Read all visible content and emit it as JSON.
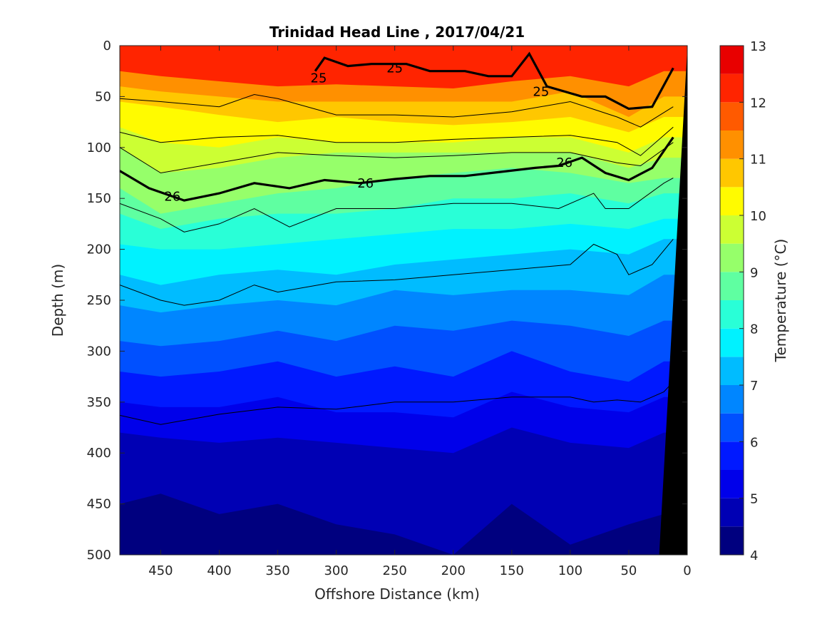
{
  "chart_data": {
    "type": "contour",
    "title": "Trinidad Head Line , 2017/04/21",
    "xlabel": "Offshore Distance (km)",
    "ylabel": "Depth (m)",
    "colorbar_label": "Temperature (°C)",
    "xlim": [
      485,
      0
    ],
    "ylim": [
      0,
      500
    ],
    "x_ticks": [
      450,
      400,
      350,
      300,
      250,
      200,
      150,
      100,
      50,
      0
    ],
    "y_ticks": [
      0,
      50,
      100,
      150,
      200,
      250,
      300,
      350,
      400,
      450,
      500
    ],
    "colorbar_ticks": [
      4,
      5,
      6,
      7,
      8,
      9,
      10,
      11,
      12,
      13
    ],
    "temperature_levels": [
      4,
      4.5,
      5,
      5.5,
      6,
      6.5,
      7,
      7.5,
      8,
      8.5,
      9,
      9.5,
      10,
      10.5,
      11,
      11.5,
      12,
      12.5,
      13
    ],
    "colormap": [
      "#00007f",
      "#0000b4",
      "#0000ea",
      "#0019ff",
      "#0050ff",
      "#0086ff",
      "#00bcff",
      "#00f2ff",
      "#29ffd7",
      "#5fffa1",
      "#96ff6a",
      "#ccff33",
      "#fffb00",
      "#ffc700",
      "#ff9000",
      "#ff5a00",
      "#ff2400",
      "#e80000",
      "#b30000"
    ],
    "isotherm_depths": {
      "distance_km": [
        485,
        450,
        400,
        350,
        300,
        250,
        200,
        150,
        100,
        50,
        20
      ],
      "t11_5": [
        25,
        30,
        35,
        40,
        38,
        40,
        42,
        35,
        30,
        40,
        25
      ],
      "t11": [
        40,
        45,
        50,
        55,
        55,
        55,
        55,
        55,
        45,
        70,
        50
      ],
      "t10_5": [
        55,
        60,
        68,
        75,
        70,
        75,
        78,
        75,
        70,
        85,
        70
      ],
      "t10": [
        80,
        95,
        100,
        90,
        95,
        95,
        95,
        90,
        90,
        105,
        90
      ],
      "t9_5": [
        100,
        125,
        120,
        110,
        105,
        105,
        105,
        105,
        105,
        120,
        110
      ],
      "t9": [
        140,
        165,
        155,
        145,
        140,
        130,
        125,
        120,
        125,
        135,
        130
      ],
      "t8_5": [
        165,
        180,
        170,
        165,
        165,
        160,
        150,
        150,
        145,
        155,
        145
      ],
      "t8": [
        195,
        200,
        200,
        195,
        190,
        185,
        180,
        180,
        175,
        180,
        170
      ],
      "t7_5": [
        225,
        235,
        225,
        220,
        225,
        215,
        210,
        205,
        200,
        205,
        190
      ],
      "t7": [
        255,
        262,
        255,
        250,
        255,
        240,
        245,
        240,
        240,
        245,
        225
      ],
      "t6_5": [
        290,
        295,
        290,
        280,
        290,
        275,
        280,
        270,
        275,
        285,
        270
      ],
      "t6": [
        320,
        325,
        320,
        310,
        325,
        315,
        325,
        300,
        320,
        330,
        310
      ],
      "t5_5": [
        350,
        355,
        355,
        345,
        360,
        360,
        365,
        340,
        355,
        360,
        345
      ],
      "t5": [
        380,
        385,
        390,
        385,
        390,
        395,
        400,
        375,
        390,
        395,
        380
      ],
      "t4_5": [
        450,
        440,
        460,
        450,
        470,
        480,
        500,
        450,
        490,
        470,
        460
      ]
    },
    "density_contours": [
      {
        "label": "25",
        "emphasis": "bold",
        "label_positions_km": [
          [
            315,
            32
          ],
          [
            250,
            22
          ],
          [
            125,
            45
          ]
        ],
        "distance_km": [
          318,
          310,
          290,
          270,
          240,
          220,
          190,
          170,
          150,
          135,
          120,
          90,
          70,
          50,
          30,
          12
        ],
        "depth_m": [
          25,
          12,
          20,
          18,
          18,
          25,
          25,
          30,
          30,
          8,
          40,
          50,
          50,
          62,
          60,
          22
        ]
      },
      {
        "label": "26",
        "emphasis": "bold",
        "label_positions_km": [
          [
            440,
            148
          ],
          [
            275,
            135
          ],
          [
            105,
            115
          ]
        ],
        "distance_km": [
          485,
          460,
          430,
          400,
          370,
          340,
          310,
          280,
          250,
          220,
          190,
          160,
          130,
          110,
          90,
          70,
          50,
          30,
          12
        ],
        "depth_m": [
          123,
          140,
          152,
          145,
          135,
          140,
          132,
          135,
          131,
          128,
          128,
          124,
          120,
          118,
          110,
          125,
          132,
          120,
          90
        ]
      },
      {
        "label": "",
        "emphasis": "thin",
        "distance_km": [
          485,
          450,
          400,
          370,
          350,
          300,
          250,
          200,
          150,
          100,
          60,
          40,
          12
        ],
        "depth_m": [
          52,
          55,
          60,
          48,
          52,
          68,
          68,
          70,
          65,
          55,
          70,
          80,
          60
        ]
      },
      {
        "label": "",
        "emphasis": "thin",
        "distance_km": [
          485,
          450,
          400,
          350,
          300,
          250,
          200,
          150,
          100,
          60,
          40,
          12
        ],
        "depth_m": [
          85,
          95,
          90,
          88,
          95,
          95,
          92,
          90,
          88,
          95,
          108,
          80
        ]
      },
      {
        "label": "",
        "emphasis": "thin",
        "distance_km": [
          485,
          450,
          400,
          350,
          300,
          250,
          200,
          150,
          100,
          60,
          40,
          12
        ],
        "depth_m": [
          100,
          125,
          115,
          105,
          108,
          110,
          108,
          105,
          105,
          115,
          118,
          95
        ]
      },
      {
        "label": "",
        "emphasis": "thin",
        "distance_km": [
          485,
          450,
          430,
          400,
          370,
          340,
          300,
          250,
          200,
          150,
          110,
          80,
          70,
          50,
          20,
          12
        ],
        "depth_m": [
          155,
          170,
          183,
          175,
          160,
          178,
          160,
          160,
          155,
          155,
          160,
          145,
          160,
          160,
          135,
          130
        ]
      },
      {
        "label": "",
        "emphasis": "thin",
        "distance_km": [
          485,
          450,
          430,
          400,
          370,
          350,
          300,
          250,
          200,
          150,
          100,
          80,
          60,
          50,
          30,
          12
        ],
        "depth_m": [
          235,
          250,
          255,
          250,
          235,
          242,
          232,
          230,
          225,
          220,
          215,
          195,
          205,
          225,
          215,
          190
        ]
      },
      {
        "label": "",
        "emphasis": "thin",
        "distance_km": [
          485,
          450,
          400,
          350,
          300,
          250,
          200,
          150,
          100,
          80,
          60,
          40,
          20,
          12
        ],
        "depth_m": [
          363,
          372,
          362,
          355,
          357,
          350,
          350,
          345,
          345,
          350,
          348,
          350,
          340,
          330
        ]
      }
    ],
    "bathymetry": {
      "color": "#000000",
      "distance_km": [
        0,
        0,
        24,
        30,
        35,
        40,
        45
      ],
      "depth_m": [
        0,
        500,
        500,
        0,
        0,
        0,
        0
      ]
    }
  }
}
